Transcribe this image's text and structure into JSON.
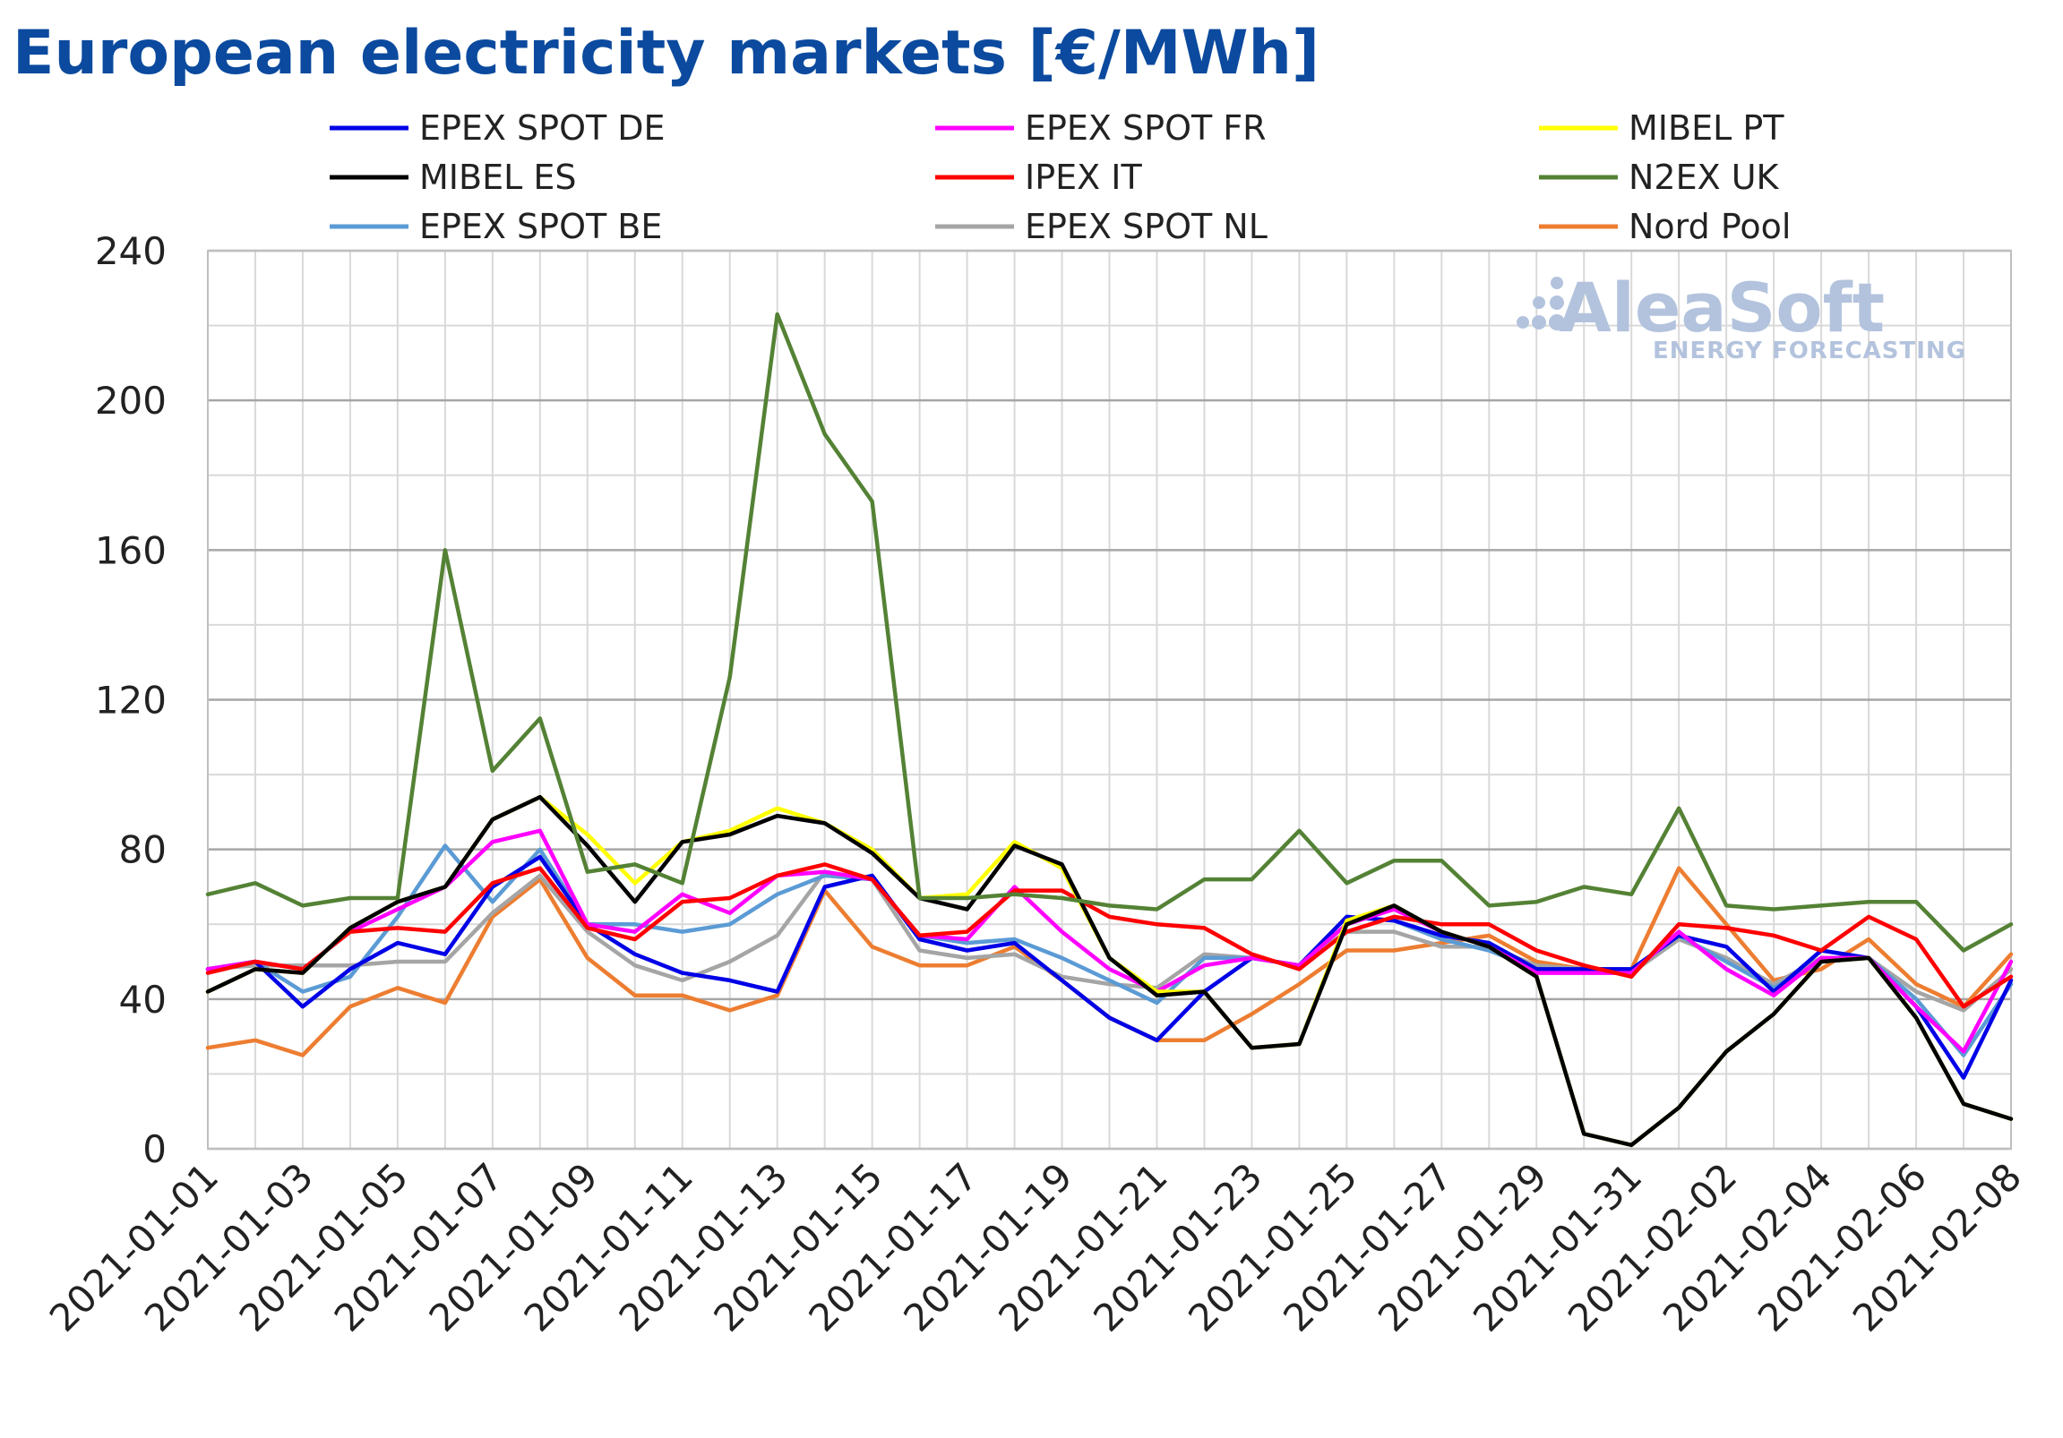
{
  "title": "European electricity markets [€/MWh]",
  "watermark": {
    "brand": "AleaSoft",
    "tagline": "ENERGY FORECASTING",
    "color": "#b3c3dd"
  },
  "chart_data": {
    "type": "line",
    "title": "European electricity markets [€/MWh]",
    "xlabel": "",
    "ylabel": "",
    "ylim": [
      0,
      240
    ],
    "yticks": [
      0,
      40,
      80,
      120,
      160,
      200,
      240
    ],
    "grid": true,
    "legend_position": "top",
    "x": [
      "2021-01-01",
      "2021-01-02",
      "2021-01-03",
      "2021-01-04",
      "2021-01-05",
      "2021-01-06",
      "2021-01-07",
      "2021-01-08",
      "2021-01-09",
      "2021-01-10",
      "2021-01-11",
      "2021-01-12",
      "2021-01-13",
      "2021-01-14",
      "2021-01-15",
      "2021-01-16",
      "2021-01-17",
      "2021-01-18",
      "2021-01-19",
      "2021-01-20",
      "2021-01-21",
      "2021-01-22",
      "2021-01-23",
      "2021-01-24",
      "2021-01-25",
      "2021-01-26",
      "2021-01-27",
      "2021-01-28",
      "2021-01-29",
      "2021-01-30",
      "2021-01-31",
      "2021-02-01",
      "2021-02-02",
      "2021-02-03",
      "2021-02-04",
      "2021-02-05",
      "2021-02-06",
      "2021-02-07",
      "2021-02-08"
    ],
    "xtick_labels": [
      "2021-01-01",
      "2021-01-03",
      "2021-01-05",
      "2021-01-07",
      "2021-01-09",
      "2021-01-11",
      "2021-01-13",
      "2021-01-15",
      "2021-01-17",
      "2021-01-19",
      "2021-01-21",
      "2021-01-23",
      "2021-01-25",
      "2021-01-27",
      "2021-01-29",
      "2021-01-31",
      "2021-02-02",
      "2021-02-04",
      "2021-02-06",
      "2021-02-08"
    ],
    "series": [
      {
        "name": "EPEX SPOT DE",
        "color": "#0000e6",
        "values": [
          48,
          50,
          38,
          48,
          55,
          52,
          70,
          78,
          60,
          52,
          47,
          45,
          42,
          70,
          73,
          56,
          53,
          55,
          45,
          35,
          29,
          42,
          51,
          49,
          62,
          61,
          57,
          55,
          48,
          48,
          48,
          57,
          54,
          42,
          53,
          51,
          38,
          19,
          45
        ]
      },
      {
        "name": "EPEX SPOT FR",
        "color": "#ff00ff",
        "values": [
          48,
          50,
          48,
          58,
          64,
          70,
          82,
          85,
          60,
          58,
          68,
          63,
          73,
          74,
          72,
          57,
          56,
          70,
          58,
          48,
          42,
          49,
          51,
          49,
          60,
          64,
          58,
          54,
          47,
          47,
          47,
          58,
          48,
          41,
          51,
          51,
          38,
          26,
          50
        ]
      },
      {
        "name": "MIBEL PT",
        "color": "#ffff00",
        "values": [
          42,
          48,
          47,
          59,
          66,
          70,
          88,
          94,
          84,
          71,
          82,
          85,
          91,
          87,
          80,
          67,
          68,
          82,
          75,
          51,
          42,
          42,
          27,
          28,
          61,
          65,
          58,
          54,
          46,
          4,
          1,
          11,
          26,
          36,
          50,
          51,
          35,
          12,
          8
        ]
      },
      {
        "name": "MIBEL ES",
        "color": "#000000",
        "values": [
          42,
          48,
          47,
          59,
          66,
          70,
          88,
          94,
          81,
          66,
          82,
          84,
          89,
          87,
          79,
          67,
          64,
          81,
          76,
          51,
          41,
          42,
          27,
          28,
          60,
          65,
          58,
          54,
          46,
          4,
          1,
          11,
          26,
          36,
          50,
          51,
          35,
          12,
          8
        ]
      },
      {
        "name": "IPEX IT",
        "color": "#ff0000",
        "values": [
          47,
          50,
          48,
          58,
          59,
          58,
          71,
          75,
          59,
          56,
          66,
          67,
          73,
          76,
          72,
          57,
          58,
          69,
          69,
          62,
          60,
          59,
          52,
          48,
          58,
          62,
          60,
          60,
          53,
          49,
          46,
          60,
          59,
          57,
          53,
          62,
          56,
          38,
          46
        ]
      },
      {
        "name": "N2EX UK",
        "color": "#548235",
        "values": [
          68,
          71,
          65,
          67,
          67,
          160,
          101,
          115,
          74,
          76,
          71,
          126,
          223,
          191,
          173,
          67,
          67,
          68,
          67,
          65,
          64,
          72,
          72,
          85,
          71,
          77,
          77,
          65,
          66,
          70,
          68,
          91,
          65,
          64,
          65,
          66,
          66,
          53,
          60
        ]
      },
      {
        "name": "EPEX SPOT BE",
        "color": "#5b9bd5",
        "values": [
          48,
          50,
          42,
          46,
          62,
          81,
          66,
          80,
          60,
          60,
          58,
          60,
          68,
          73,
          72,
          57,
          55,
          56,
          51,
          45,
          39,
          51,
          51,
          49,
          62,
          61,
          56,
          53,
          48,
          48,
          48,
          57,
          50,
          43,
          50,
          51,
          40,
          25,
          44
        ]
      },
      {
        "name": "EPEX SPOT NL",
        "color": "#a5a5a5",
        "values": [
          48,
          49,
          49,
          49,
          50,
          50,
          63,
          73,
          58,
          49,
          45,
          50,
          57,
          74,
          72,
          53,
          51,
          52,
          46,
          44,
          43,
          52,
          51,
          49,
          58,
          58,
          54,
          54,
          49,
          48,
          47,
          56,
          51,
          44,
          51,
          51,
          42,
          37,
          48
        ]
      },
      {
        "name": "Nord Pool",
        "color": "#ed7d31",
        "values": [
          27,
          29,
          25,
          38,
          43,
          39,
          62,
          72,
          51,
          41,
          41,
          37,
          41,
          69,
          54,
          49,
          49,
          54,
          45,
          35,
          29,
          29,
          36,
          44,
          53,
          53,
          55,
          57,
          50,
          48,
          48,
          75,
          60,
          45,
          48,
          56,
          44,
          38,
          52
        ]
      }
    ]
  }
}
